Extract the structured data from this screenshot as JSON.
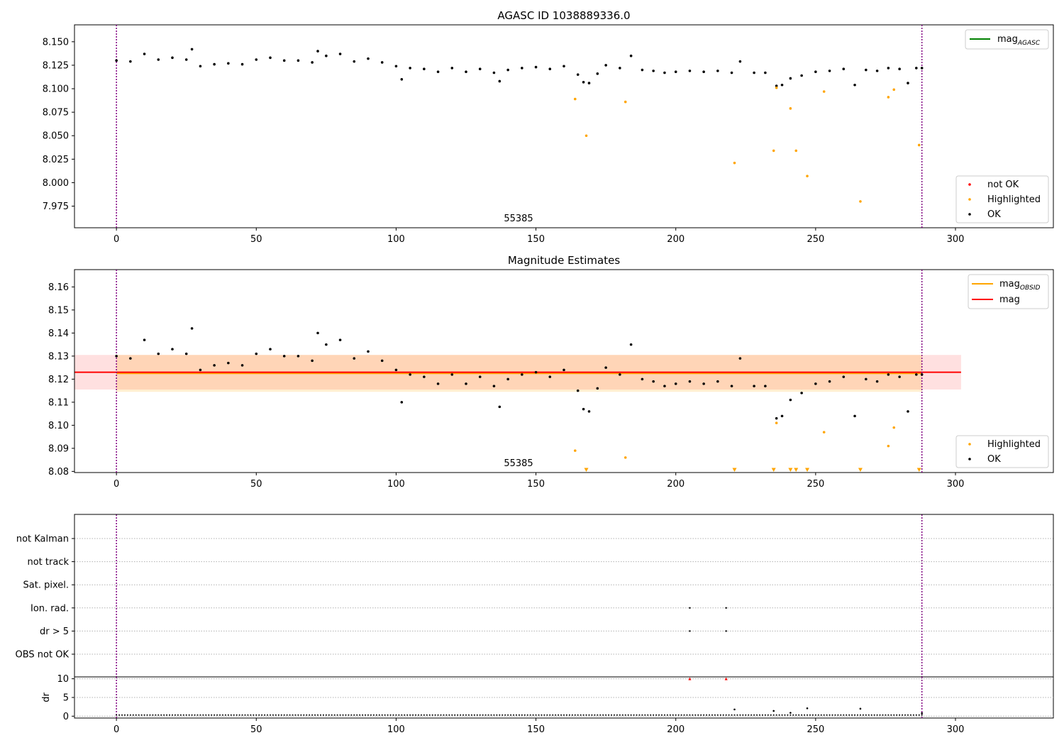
{
  "chart_data": [
    {
      "type": "scatter",
      "title": "AGASC ID 1038889336.0",
      "annotation": "55385",
      "xlim": [
        -15,
        335
      ],
      "ylim": [
        7.952,
        8.168
      ],
      "xticks": [
        0,
        50,
        100,
        150,
        200,
        250,
        300
      ],
      "yticks": [
        "7.975",
        "8.000",
        "8.025",
        "8.050",
        "8.075",
        "8.100",
        "8.125",
        "8.150"
      ],
      "vlines": [
        0,
        288
      ],
      "legend_upper": [
        "mag_AGASC"
      ],
      "legend_lower": [
        "not OK",
        "Highlighted",
        "OK"
      ],
      "series": [
        {
          "name": "OK",
          "color": "#000000",
          "points": [
            [
              0,
              8.13
            ],
            [
              5,
              8.129
            ],
            [
              10,
              8.137
            ],
            [
              15,
              8.131
            ],
            [
              20,
              8.133
            ],
            [
              25,
              8.131
            ],
            [
              27,
              8.142
            ],
            [
              30,
              8.124
            ],
            [
              35,
              8.126
            ],
            [
              40,
              8.127
            ],
            [
              45,
              8.126
            ],
            [
              50,
              8.131
            ],
            [
              55,
              8.133
            ],
            [
              60,
              8.13
            ],
            [
              65,
              8.13
            ],
            [
              70,
              8.128
            ],
            [
              72,
              8.14
            ],
            [
              75,
              8.135
            ],
            [
              80,
              8.137
            ],
            [
              85,
              8.129
            ],
            [
              90,
              8.132
            ],
            [
              95,
              8.128
            ],
            [
              100,
              8.124
            ],
            [
              102,
              8.11
            ],
            [
              105,
              8.122
            ],
            [
              110,
              8.121
            ],
            [
              115,
              8.118
            ],
            [
              120,
              8.122
            ],
            [
              125,
              8.118
            ],
            [
              130,
              8.121
            ],
            [
              135,
              8.117
            ],
            [
              137,
              8.108
            ],
            [
              140,
              8.12
            ],
            [
              145,
              8.122
            ],
            [
              150,
              8.123
            ],
            [
              155,
              8.121
            ],
            [
              160,
              8.124
            ],
            [
              165,
              8.115
            ],
            [
              167,
              8.107
            ],
            [
              169,
              8.106
            ],
            [
              172,
              8.116
            ],
            [
              175,
              8.125
            ],
            [
              180,
              8.122
            ],
            [
              184,
              8.135
            ],
            [
              188,
              8.12
            ],
            [
              192,
              8.119
            ],
            [
              196,
              8.117
            ],
            [
              200,
              8.118
            ],
            [
              205,
              8.119
            ],
            [
              210,
              8.118
            ],
            [
              215,
              8.119
            ],
            [
              220,
              8.117
            ],
            [
              223,
              8.129
            ],
            [
              228,
              8.117
            ],
            [
              232,
              8.117
            ],
            [
              236,
              8.103
            ],
            [
              238,
              8.104
            ],
            [
              241,
              8.111
            ],
            [
              245,
              8.114
            ],
            [
              250,
              8.118
            ],
            [
              255,
              8.119
            ],
            [
              260,
              8.121
            ],
            [
              264,
              8.104
            ],
            [
              268,
              8.12
            ],
            [
              272,
              8.119
            ],
            [
              276,
              8.122
            ],
            [
              280,
              8.121
            ],
            [
              283,
              8.106
            ],
            [
              286,
              8.122
            ],
            [
              288,
              8.122
            ]
          ]
        },
        {
          "name": "Highlighted",
          "color": "#ffa500",
          "points": [
            [
              164,
              8.089
            ],
            [
              168,
              8.05
            ],
            [
              182,
              8.086
            ],
            [
              221,
              8.021
            ],
            [
              235,
              8.034
            ],
            [
              236,
              8.101
            ],
            [
              241,
              8.079
            ],
            [
              243,
              8.034
            ],
            [
              247,
              8.007
            ],
            [
              253,
              8.097
            ],
            [
              266,
              7.98
            ],
            [
              276,
              8.091
            ],
            [
              278,
              8.099
            ],
            [
              287,
              8.04
            ]
          ]
        }
      ],
      "reference_line": {
        "name": "mag_AGASC",
        "value": 8.123,
        "color": "#008000"
      }
    },
    {
      "type": "scatter",
      "title": "Magnitude Estimates",
      "annotation": "55385",
      "xlim": [
        -15,
        335
      ],
      "ylim": [
        8.0795,
        8.1675
      ],
      "xticks": [
        0,
        50,
        100,
        150,
        200,
        250,
        300
      ],
      "yticks": [
        "8.08",
        "8.09",
        "8.10",
        "8.11",
        "8.12",
        "8.13",
        "8.14",
        "8.15",
        "8.16"
      ],
      "vlines": [
        0,
        288
      ],
      "legend_upper": [
        "mag_OBSID",
        "mag"
      ],
      "legend_lower": [
        "Highlighted",
        "OK"
      ],
      "mag": {
        "value": 8.123,
        "band": [
          8.1155,
          8.1305
        ],
        "color": "#ff0000"
      },
      "mag_obsid": {
        "value": 8.1225,
        "band": [
          8.1145,
          8.1305
        ],
        "color": "#ffa500"
      },
      "series": [
        {
          "name": "OK",
          "color": "#000000",
          "points": [
            [
              0,
              8.13
            ],
            [
              5,
              8.129
            ],
            [
              10,
              8.137
            ],
            [
              15,
              8.131
            ],
            [
              20,
              8.133
            ],
            [
              25,
              8.131
            ],
            [
              27,
              8.142
            ],
            [
              30,
              8.124
            ],
            [
              35,
              8.126
            ],
            [
              40,
              8.127
            ],
            [
              45,
              8.126
            ],
            [
              50,
              8.131
            ],
            [
              55,
              8.133
            ],
            [
              60,
              8.13
            ],
            [
              65,
              8.13
            ],
            [
              70,
              8.128
            ],
            [
              72,
              8.14
            ],
            [
              75,
              8.135
            ],
            [
              80,
              8.137
            ],
            [
              85,
              8.129
            ],
            [
              90,
              8.132
            ],
            [
              95,
              8.128
            ],
            [
              100,
              8.124
            ],
            [
              102,
              8.11
            ],
            [
              105,
              8.122
            ],
            [
              110,
              8.121
            ],
            [
              115,
              8.118
            ],
            [
              120,
              8.122
            ],
            [
              125,
              8.118
            ],
            [
              130,
              8.121
            ],
            [
              135,
              8.117
            ],
            [
              137,
              8.108
            ],
            [
              140,
              8.12
            ],
            [
              145,
              8.122
            ],
            [
              150,
              8.123
            ],
            [
              155,
              8.121
            ],
            [
              160,
              8.124
            ],
            [
              165,
              8.115
            ],
            [
              167,
              8.107
            ],
            [
              169,
              8.106
            ],
            [
              172,
              8.116
            ],
            [
              175,
              8.125
            ],
            [
              180,
              8.122
            ],
            [
              184,
              8.135
            ],
            [
              188,
              8.12
            ],
            [
              192,
              8.119
            ],
            [
              196,
              8.117
            ],
            [
              200,
              8.118
            ],
            [
              205,
              8.119
            ],
            [
              210,
              8.118
            ],
            [
              215,
              8.119
            ],
            [
              220,
              8.117
            ],
            [
              223,
              8.129
            ],
            [
              228,
              8.117
            ],
            [
              232,
              8.117
            ],
            [
              236,
              8.103
            ],
            [
              238,
              8.104
            ],
            [
              241,
              8.111
            ],
            [
              245,
              8.114
            ],
            [
              250,
              8.118
            ],
            [
              255,
              8.119
            ],
            [
              260,
              8.121
            ],
            [
              264,
              8.104
            ],
            [
              268,
              8.12
            ],
            [
              272,
              8.119
            ],
            [
              276,
              8.122
            ],
            [
              280,
              8.121
            ],
            [
              283,
              8.106
            ],
            [
              286,
              8.122
            ],
            [
              288,
              8.122
            ]
          ]
        },
        {
          "name": "Highlighted",
          "color": "#ffa500",
          "points": [
            [
              164,
              8.089
            ],
            [
              182,
              8.086
            ],
            [
              236,
              8.101
            ],
            [
              253,
              8.097
            ],
            [
              276,
              8.091
            ],
            [
              278,
              8.099
            ]
          ]
        },
        {
          "name": "below range",
          "color": "#ffa500",
          "marker": "triangle-down",
          "points": [
            [
              168,
              8.0802
            ],
            [
              221,
              8.0802
            ],
            [
              235,
              8.0802
            ],
            [
              241,
              8.0802
            ],
            [
              243,
              8.0802
            ],
            [
              247,
              8.0802
            ],
            [
              266,
              8.0802
            ],
            [
              287,
              8.0802
            ]
          ]
        }
      ]
    },
    {
      "type": "scatter",
      "title": "",
      "xlim": [
        -15,
        335
      ],
      "flag_labels": [
        "not Kalman",
        "not track",
        "Sat. pixel.",
        "Ion. rad.",
        "dr > 5",
        "OBS not OK"
      ],
      "flag_points": [
        {
          "flag": "Ion. rad.",
          "x": 205
        },
        {
          "flag": "Ion. rad.",
          "x": 218
        },
        {
          "flag": "dr > 5",
          "x": 205
        },
        {
          "flag": "dr > 5",
          "x": 218
        }
      ]
    },
    {
      "type": "scatter",
      "title": "",
      "ylabel": "dr",
      "xlim": [
        -15,
        335
      ],
      "ylim": [
        -0.5,
        10.5
      ],
      "xticks": [
        0,
        50,
        100,
        150,
        200,
        250,
        300
      ],
      "yticks": [
        "0",
        "5",
        "10"
      ],
      "vlines": [
        0,
        288
      ],
      "dr_baseline": 0.3,
      "dr_spikes": [
        [
          221,
          1.8
        ],
        [
          235,
          1.4
        ],
        [
          241,
          0.9
        ],
        [
          247,
          2.1
        ],
        [
          266,
          2.0
        ],
        [
          288,
          0.8
        ]
      ],
      "dr_clipped": [
        [
          205,
          10
        ],
        [
          218,
          10
        ]
      ]
    }
  ]
}
